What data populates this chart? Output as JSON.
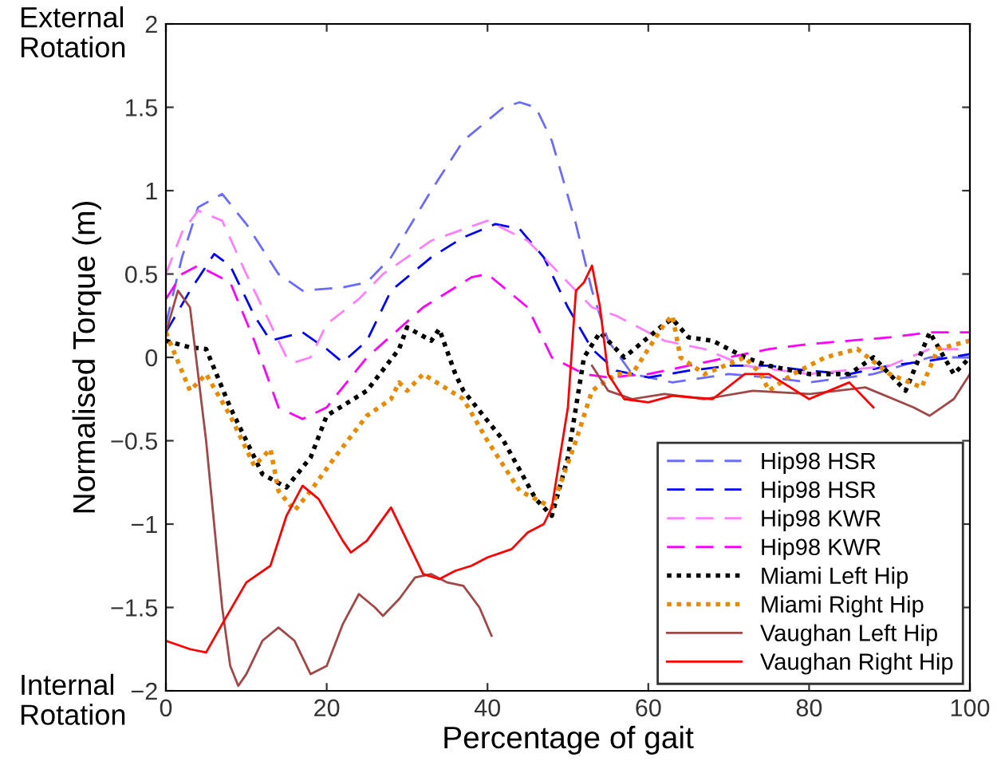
{
  "chart_data": {
    "type": "line",
    "xlabel": "Percentage of gait",
    "ylabel": "Normalised Torque (m)",
    "annotations": [
      "External\nRotation",
      "Internal\nRotation"
    ],
    "xlim": [
      0,
      100
    ],
    "ylim": [
      -2,
      2
    ],
    "xticks": [
      0,
      20,
      40,
      60,
      80,
      100
    ],
    "yticks": [
      -2,
      -1.5,
      -1,
      -0.5,
      0,
      0.5,
      1,
      1.5,
      2
    ],
    "grid": false,
    "legend": "bottom right",
    "marker": "none",
    "series": [
      {
        "name": "Hip98 HSR",
        "color": "#6b6bff",
        "line_style": "dashed",
        "x": [
          0,
          2,
          4,
          7,
          10,
          14,
          17,
          22,
          25,
          28,
          33,
          37,
          42,
          44,
          46,
          48,
          51,
          53,
          55,
          58,
          63,
          70,
          75,
          80,
          88,
          95,
          100
        ],
        "values": [
          0.2,
          0.6,
          0.9,
          0.98,
          0.8,
          0.5,
          0.4,
          0.42,
          0.45,
          0.6,
          1.0,
          1.3,
          1.5,
          1.53,
          1.5,
          1.3,
          0.8,
          0.4,
          0.1,
          -0.1,
          -0.15,
          -0.1,
          -0.12,
          -0.15,
          -0.1,
          0.0,
          0.0
        ]
      },
      {
        "name": "Hip98 HSR",
        "color": "#0000ff",
        "line_style": "dashed",
        "x": [
          0,
          3,
          6,
          8,
          11,
          13,
          17,
          20,
          22,
          25,
          28,
          33,
          37,
          41,
          44,
          47,
          50,
          53,
          56,
          60,
          65,
          70,
          75,
          80,
          85,
          90,
          95,
          100
        ],
        "values": [
          0.15,
          0.4,
          0.62,
          0.55,
          0.25,
          0.1,
          0.15,
          0.05,
          -0.03,
          0.1,
          0.4,
          0.6,
          0.72,
          0.8,
          0.77,
          0.6,
          0.3,
          0.05,
          -0.08,
          -0.12,
          -0.08,
          -0.05,
          -0.05,
          -0.08,
          -0.1,
          -0.05,
          -0.02,
          0.02
        ]
      },
      {
        "name": "Hip98 KWR",
        "color": "#ff80ff",
        "line_style": "dashed",
        "x": [
          0,
          2,
          4,
          7,
          10,
          13,
          15,
          16,
          18,
          20,
          24,
          27,
          33,
          40,
          45,
          50,
          53,
          56,
          62,
          67,
          72,
          80,
          90,
          95,
          100
        ],
        "values": [
          0.5,
          0.75,
          0.88,
          0.82,
          0.5,
          0.2,
          0.0,
          -0.03,
          0.0,
          0.2,
          0.35,
          0.5,
          0.7,
          0.82,
          0.7,
          0.45,
          0.3,
          0.25,
          0.1,
          0.05,
          -0.05,
          -0.1,
          -0.05,
          0.05,
          0.05
        ]
      },
      {
        "name": "Hip98 KWR",
        "color": "#ff00ff",
        "line_style": "dashed",
        "x": [
          0,
          2,
          4,
          8,
          11,
          14,
          17,
          20,
          25,
          32,
          38,
          40,
          45,
          48,
          52,
          55,
          60,
          65,
          70,
          75,
          80,
          85,
          90,
          95,
          100
        ],
        "values": [
          0.35,
          0.5,
          0.55,
          0.45,
          0.1,
          -0.3,
          -0.37,
          -0.3,
          0.0,
          0.3,
          0.48,
          0.5,
          0.3,
          0.0,
          -0.1,
          -0.12,
          -0.1,
          -0.05,
          0.0,
          0.05,
          0.08,
          0.1,
          0.12,
          0.15,
          0.15
        ]
      },
      {
        "name": "Miami Left Hip",
        "color": "#000000",
        "line_style": "dotted",
        "x": [
          0,
          3,
          5,
          8,
          12,
          15,
          18,
          20,
          25,
          29,
          30,
          33,
          34,
          36,
          37,
          42,
          46,
          48,
          50,
          52,
          54,
          57,
          62,
          63,
          65,
          68,
          72,
          75,
          80,
          85,
          88,
          92,
          95,
          98,
          100
        ],
        "values": [
          0.1,
          0.06,
          0.05,
          -0.3,
          -0.7,
          -0.78,
          -0.6,
          -0.35,
          -0.2,
          0.05,
          0.18,
          0.1,
          0.17,
          -0.1,
          -0.2,
          -0.5,
          -0.85,
          -0.95,
          -0.6,
          0.0,
          0.15,
          0.0,
          0.2,
          0.23,
          0.12,
          0.1,
          0.0,
          -0.05,
          -0.1,
          -0.1,
          0.0,
          -0.2,
          0.15,
          -0.1,
          0.0
        ]
      },
      {
        "name": "Miami Right Hip",
        "color": "#e88a00",
        "line_style": "dotted",
        "x": [
          0,
          3,
          5,
          8,
          11,
          13,
          14,
          16,
          18,
          21,
          25,
          28,
          29,
          30,
          32,
          37,
          40,
          44,
          48,
          51,
          53,
          56,
          58,
          62,
          63,
          64,
          67,
          72,
          74,
          75,
          78,
          82,
          86,
          90,
          94,
          96,
          100
        ],
        "values": [
          0.15,
          -0.2,
          -0.1,
          -0.35,
          -0.65,
          -0.55,
          -0.8,
          -0.92,
          -0.8,
          -0.6,
          -0.35,
          -0.25,
          -0.15,
          -0.2,
          -0.1,
          -0.25,
          -0.5,
          -0.8,
          -0.9,
          -0.5,
          -0.2,
          -0.1,
          -0.1,
          0.2,
          0.25,
          0.0,
          -0.1,
          0.0,
          -0.1,
          -0.2,
          -0.1,
          0.0,
          0.05,
          -0.1,
          -0.18,
          0.05,
          0.1
        ]
      },
      {
        "name": "Vaughan Left Hip",
        "color": "#a04848",
        "line_style": "solid",
        "x": [
          0,
          1.5,
          3,
          5,
          7,
          8,
          9,
          10,
          12,
          14,
          16,
          18,
          20,
          22,
          24,
          26,
          27,
          29,
          31,
          33,
          35,
          37,
          39,
          40.5,
          46,
          53,
          55,
          58,
          62,
          67,
          73,
          80,
          87,
          93,
          95,
          98,
          100
        ],
        "values": [
          0.15,
          0.4,
          0.3,
          -0.5,
          -1.5,
          -1.85,
          -1.97,
          -1.9,
          -1.7,
          -1.62,
          -1.7,
          -1.9,
          -1.85,
          -1.6,
          -1.42,
          -1.5,
          -1.55,
          -1.45,
          -1.32,
          -1.3,
          -1.35,
          -1.37,
          -1.5,
          -1.67,
          null,
          -0.05,
          -0.2,
          -0.25,
          -0.22,
          -0.25,
          -0.2,
          -0.22,
          -0.18,
          -0.3,
          -0.35,
          -0.25,
          -0.1
        ]
      },
      {
        "name": "Vaughan Right Hip",
        "color": "#ff0000",
        "line_style": "solid",
        "x": [
          0,
          3,
          5,
          7,
          10,
          13,
          15,
          17,
          19,
          22,
          23,
          25,
          28,
          30,
          32,
          34,
          36,
          38,
          40,
          43,
          45,
          47,
          48,
          50,
          51,
          52,
          53,
          54,
          55,
          57,
          60,
          63,
          68,
          72,
          75,
          80,
          85,
          88
        ],
        "values": [
          -1.7,
          -1.75,
          -1.77,
          -1.6,
          -1.35,
          -1.25,
          -0.95,
          -0.77,
          -0.85,
          -1.1,
          -1.17,
          -1.1,
          -0.9,
          -1.1,
          -1.3,
          -1.33,
          -1.28,
          -1.25,
          -1.2,
          -1.15,
          -1.05,
          -1.0,
          -0.9,
          -0.3,
          0.4,
          0.45,
          0.55,
          0.3,
          -0.1,
          -0.25,
          -0.27,
          -0.23,
          -0.25,
          -0.1,
          -0.1,
          -0.25,
          -0.15,
          -0.3
        ]
      }
    ]
  }
}
